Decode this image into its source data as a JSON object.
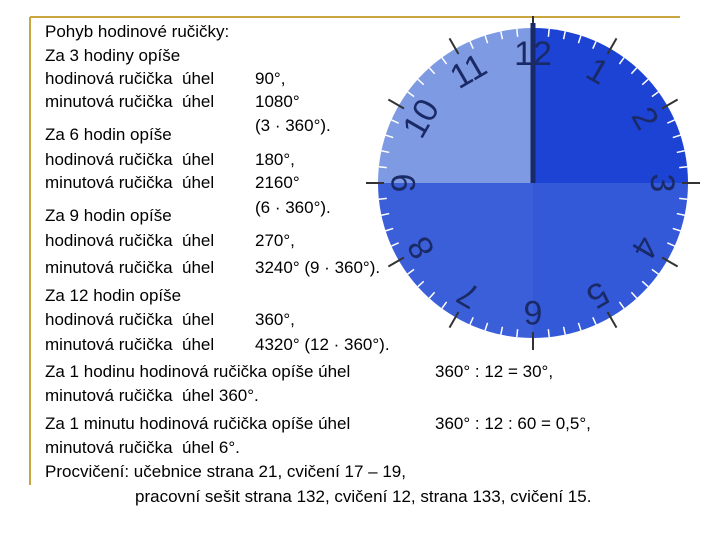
{
  "heading": "Pohyb hodinové ručičky:",
  "lines": [
    {
      "left": "Za 3 hodiny opíše"
    },
    {
      "left": "hodinová ručička  úhel",
      "right": "90°,"
    },
    {
      "left": "minutová ručička  úhel",
      "right": "1080°"
    },
    {
      "right": "(3 · 360°)."
    },
    {
      "left": "Za 6 hodin opíše"
    },
    {
      "left": "hodinová ručička  úhel",
      "right": "180°,"
    },
    {
      "left": "minutová ručička  úhel",
      "right": "2160°"
    },
    {
      "right": "(6 · 360°)."
    },
    {
      "left": "Za 9 hodin opíše"
    },
    {
      "left": "hodinová ručička  úhel",
      "right": "270°,"
    },
    {
      "left": "minutová ručička  úhel",
      "right": "3240° (9 · 360°)."
    },
    {
      "left": "Za 12 hodin opíše"
    },
    {
      "left": "hodinová ručička  úhel",
      "right": "360°,"
    },
    {
      "left": "minutová ručička  úhel",
      "right": "4320° (12 · 360°)."
    },
    {
      "left": "Za 1 hodinu hodinová ručička opíše úhel",
      "far": "360° : 12 = 30°,"
    },
    {
      "left": "minutová ručička  úhel 360°."
    },
    {
      "left": "Za 1 minutu hodinová ručička opíše úhel",
      "far": "360° : 12 : 60 = 0,5°,"
    },
    {
      "left": "minutová ručička  úhel 6°."
    },
    {
      "left": "Procvičení: učebnice strana 21, cvičení 17 – 19,"
    },
    {
      "indent": "pracovní sešit strana 132, cvičení 12, strana 133, cvičení 15."
    }
  ],
  "clock": {
    "numbers": [
      "1",
      "2",
      "3",
      "4",
      "5",
      "6",
      "7",
      "8",
      "9",
      "10",
      "11",
      "12"
    ]
  }
}
